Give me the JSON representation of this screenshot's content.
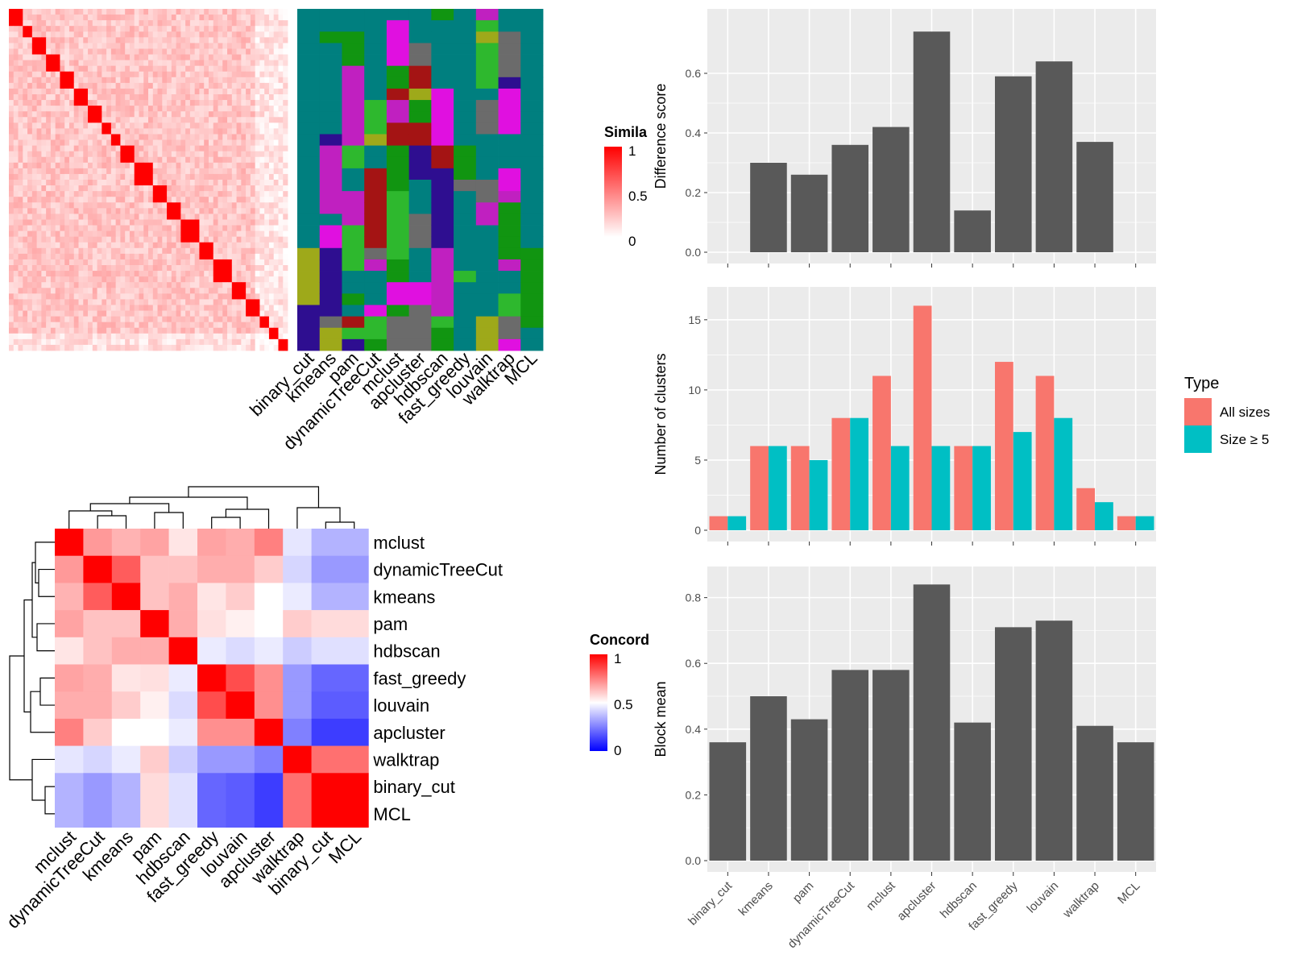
{
  "methods": [
    "binary_cut",
    "kmeans",
    "pam",
    "dynamicTreeCut",
    "mclust",
    "apcluster",
    "hdbscan",
    "fast_greedy",
    "louvain",
    "walktrap",
    "MCL"
  ],
  "heatmap_top": {
    "legend_title": "Simila",
    "legend_ticks": [
      "1",
      "0.5",
      "0"
    ],
    "columns": [
      "binary_cut",
      "kmeans",
      "pam",
      "dynamicTreeCut",
      "mclust",
      "apcluster",
      "hdbscan",
      "fast_greedy",
      "louvain",
      "walktrap",
      "MCL"
    ]
  },
  "concordance": {
    "legend_title": "Concord",
    "legend_ticks": [
      "1",
      "0.5",
      "0"
    ],
    "order": [
      "mclust",
      "dynamicTreeCut",
      "kmeans",
      "pam",
      "hdbscan",
      "fast_greedy",
      "louvain",
      "apcluster",
      "walktrap",
      "binary_cut",
      "MCL"
    ],
    "colors": {
      "high": "#ff0000",
      "mid": "#ffffff",
      "low": "#0000ff"
    }
  },
  "chart_data": [
    {
      "type": "bar",
      "ylabel": "Difference score",
      "categories": [
        "binary_cut",
        "kmeans",
        "pam",
        "dynamicTreeCut",
        "mclust",
        "apcluster",
        "hdbscan",
        "fast_greedy",
        "louvain",
        "walktrap",
        "MCL"
      ],
      "values": [
        null,
        0.3,
        0.26,
        0.36,
        0.42,
        0.74,
        0.14,
        0.59,
        0.64,
        0.37,
        null
      ],
      "ylim": [
        0,
        0.8
      ],
      "yticks": [
        "0.0",
        "0.2",
        "0.4",
        "0.6"
      ],
      "color": "#595959"
    },
    {
      "type": "bar",
      "ylabel": "Number of clusters",
      "categories": [
        "binary_cut",
        "kmeans",
        "pam",
        "dynamicTreeCut",
        "mclust",
        "apcluster",
        "hdbscan",
        "fast_greedy",
        "louvain",
        "walktrap",
        "MCL"
      ],
      "series": [
        {
          "name": "All sizes",
          "color": "#f8766d",
          "values": [
            1,
            6,
            6,
            8,
            11,
            16,
            6,
            12,
            11,
            3,
            1
          ]
        },
        {
          "name": "Size ≥ 5",
          "color": "#00bfc4",
          "values": [
            1,
            6,
            5,
            8,
            6,
            6,
            6,
            7,
            8,
            2,
            1
          ]
        }
      ],
      "ylim": [
        0,
        17
      ],
      "yticks": [
        "0",
        "5",
        "10",
        "15"
      ],
      "legend_title": "Type",
      "legend_position": "right"
    },
    {
      "type": "bar",
      "ylabel": "Block mean",
      "categories": [
        "binary_cut",
        "kmeans",
        "pam",
        "dynamicTreeCut",
        "mclust",
        "apcluster",
        "hdbscan",
        "fast_greedy",
        "louvain",
        "walktrap",
        "MCL"
      ],
      "values": [
        0.36,
        0.5,
        0.43,
        0.58,
        0.58,
        0.84,
        0.42,
        0.71,
        0.73,
        0.41,
        0.36
      ],
      "ylim": [
        0,
        0.88
      ],
      "yticks": [
        "0.0",
        "0.2",
        "0.4",
        "0.6",
        "0.8"
      ],
      "color": "#595959"
    }
  ]
}
